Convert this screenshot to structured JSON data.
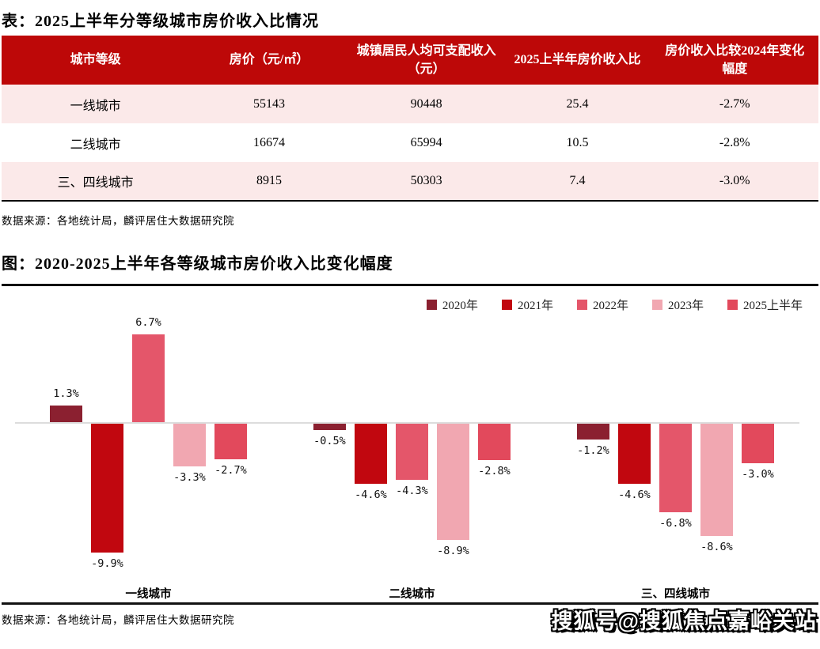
{
  "table_section": {
    "title": "表：2025上半年分等级城市房价收入比情况",
    "columns": [
      "城市等级",
      "房价（元/㎡）",
      "城镇居民人均可支配收入（元）",
      "2025上半年房价收入比",
      "房价收入比较2024年变化幅度"
    ],
    "rows": [
      {
        "tier": "一线城市",
        "price": "55143",
        "income": "90448",
        "ratio": "25.4",
        "change": "-2.7%"
      },
      {
        "tier": "二线城市",
        "price": "16674",
        "income": "65994",
        "ratio": "10.5",
        "change": "-2.8%"
      },
      {
        "tier": "三、四线城市",
        "price": "8915",
        "income": "50303",
        "ratio": "7.4",
        "change": "-3.0%"
      }
    ],
    "source": "数据来源：各地统计局，麟评居住大数据研究院"
  },
  "chart_section": {
    "title": "图：2020-2025上半年各等级城市房价收入比变化幅度",
    "source": "数据来源：各地统计局，麟评居住大数据研究院"
  },
  "chart_data": {
    "type": "bar",
    "title": "图：2020-2025上半年各等级城市房价收入比变化幅度",
    "categories": [
      "一线城市",
      "二线城市",
      "三、四线城市"
    ],
    "series": [
      {
        "name": "2020年",
        "color": "#8B2030",
        "values": [
          1.3,
          -0.5,
          -1.2
        ]
      },
      {
        "name": "2021年",
        "color": "#C1070F",
        "values": [
          -9.9,
          -4.6,
          -4.6
        ]
      },
      {
        "name": "2022年",
        "color": "#E4566A",
        "values": [
          6.7,
          -4.3,
          -6.8
        ]
      },
      {
        "name": "2023年",
        "color": "#F1A7B1",
        "values": [
          -3.3,
          -8.9,
          -8.6
        ]
      },
      {
        "name": "2025上半年",
        "color": "#E2495C",
        "values": [
          -2.7,
          -2.8,
          -3.0
        ]
      }
    ],
    "value_label_format": "0.0%",
    "ylim": [
      -11,
      8
    ],
    "grid": false,
    "legend_position": "top-right"
  },
  "watermark": "搜狐号@搜狐焦点嘉峪关站",
  "colors": {
    "table_header_bg": "#BD0808",
    "row_pink": "#FBE9E9",
    "row_white": "#FFFFFF",
    "axis_line": "#DCDCDC",
    "divider": "#111111"
  }
}
